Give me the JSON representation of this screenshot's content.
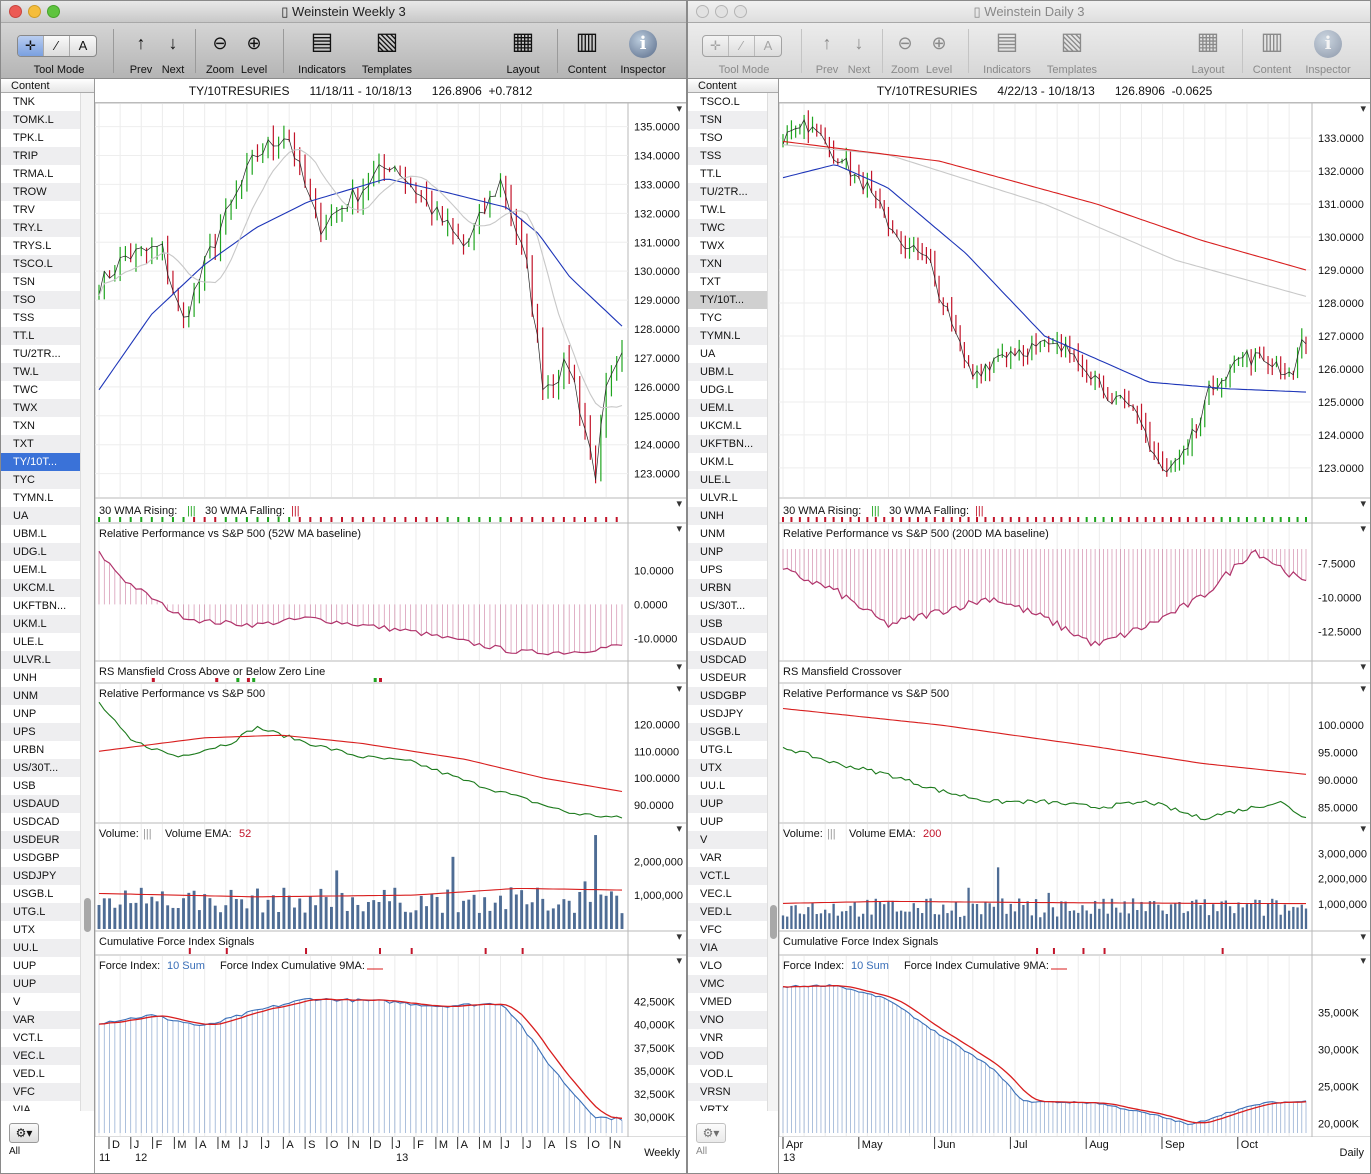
{
  "windows": [
    {
      "title": "Weinstein Weekly 3",
      "active": true,
      "toolbar": {
        "tool_mode": "Tool Mode",
        "prev": "Prev",
        "next": "Next",
        "zoom": "Zoom",
        "level": "Level",
        "indicators": "Indicators",
        "templates": "Templates",
        "layout": "Layout",
        "content": "Content",
        "inspector": "Inspector"
      },
      "sidebar": {
        "header": "Content",
        "selected": "TY/10T...",
        "bottom": "All",
        "items": [
          "TNK",
          "TOMK.L",
          "TPK.L",
          "TRIP",
          "TRMA.L",
          "TROW",
          "TRV",
          "TRY.L",
          "TRYS.L",
          "TSCO.L",
          "TSN",
          "TSO",
          "TSS",
          "TT.L",
          "TU/2TR...",
          "TW.L",
          "TWC",
          "TWX",
          "TXN",
          "TXT",
          "TY/10T...",
          "TYC",
          "TYMN.L",
          "UA",
          "UBM.L",
          "UDG.L",
          "UEM.L",
          "UKCM.L",
          "UKFTBN...",
          "UKM.L",
          "ULE.L",
          "ULVR.L",
          "UNH",
          "UNM",
          "UNP",
          "UPS",
          "URBN",
          "US/30T...",
          "USB",
          "USDAUD",
          "USDCAD",
          "USDEUR",
          "USDGBP",
          "USDJPY",
          "USGB.L",
          "UTG.L",
          "UTX",
          "UU.L",
          "UUP",
          "UUP",
          "V",
          "VAR",
          "VCT.L",
          "VEC.L",
          "VED.L",
          "VFC",
          "VIA"
        ]
      },
      "header": {
        "symbol": "TY/10TRESURIES",
        "range": "11/18/11 - 10/18/13",
        "last": "126.8906",
        "change": "+0.7812"
      },
      "panels": {
        "price": {
          "ticks": [
            "135.0000",
            "134.0000",
            "133.0000",
            "132.0000",
            "131.0000",
            "130.0000",
            "129.0000",
            "128.0000",
            "127.0000",
            "126.0000",
            "125.0000",
            "124.0000",
            "123.0000"
          ]
        },
        "wma": {
          "rising": "30 WMA Rising:",
          "falling": "30 WMA Falling:"
        },
        "relperf_ma": {
          "title": "Relative Performance vs S&P 500 (52W MA baseline)",
          "ticks": [
            "10.0000",
            "0.0000",
            "-10.0000"
          ]
        },
        "rs_mansfield": {
          "title": "RS Mansfield Cross Above or Below Zero Line"
        },
        "relperf": {
          "title": "Relative Performance vs S&P 500",
          "ticks": [
            "120.0000",
            "110.0000",
            "100.0000",
            "90.0000"
          ]
        },
        "volume": {
          "title": "Volume:",
          "ema_label": "Volume EMA:",
          "ema_value": "52",
          "ticks": [
            "2,000,000",
            "1,000,000"
          ]
        },
        "cfi": {
          "title": "Cumulative Force Index Signals"
        },
        "force": {
          "title": "Force Index:",
          "sum": "10 Sum",
          "cum": "Force Index Cumulative 9MA:",
          "ticks": [
            "42,500K",
            "40,000K",
            "37,500K",
            "35,000K",
            "32,500K",
            "30,000K"
          ]
        }
      },
      "xaxis": {
        "months": [
          "D",
          "J",
          "F",
          "M",
          "A",
          "M",
          "J",
          "J",
          "A",
          "S",
          "O",
          "N",
          "D",
          "J",
          "F",
          "M",
          "A",
          "M",
          "J",
          "J",
          "A",
          "S",
          "O",
          "N"
        ],
        "years": [
          "11",
          "12",
          "13"
        ],
        "period": "Weekly"
      }
    },
    {
      "title": "Weinstein Daily 3",
      "active": false,
      "toolbar": {
        "tool_mode": "Tool Mode",
        "prev": "Prev",
        "next": "Next",
        "zoom": "Zoom",
        "level": "Level",
        "indicators": "Indicators",
        "templates": "Templates",
        "layout": "Layout",
        "content": "Content",
        "inspector": "Inspector"
      },
      "sidebar": {
        "header": "Content",
        "selected": "TY/10T...",
        "bottom": "All",
        "items": [
          "TSCO.L",
          "TSN",
          "TSO",
          "TSS",
          "TT.L",
          "TU/2TR...",
          "TW.L",
          "TWC",
          "TWX",
          "TXN",
          "TXT",
          "TY/10T...",
          "TYC",
          "TYMN.L",
          "UA",
          "UBM.L",
          "UDG.L",
          "UEM.L",
          "UKCM.L",
          "UKFTBN...",
          "UKM.L",
          "ULE.L",
          "ULVR.L",
          "UNH",
          "UNM",
          "UNP",
          "UPS",
          "URBN",
          "US/30T...",
          "USB",
          "USDAUD",
          "USDCAD",
          "USDEUR",
          "USDGBP",
          "USDJPY",
          "USGB.L",
          "UTG.L",
          "UTX",
          "UU.L",
          "UUP",
          "UUP",
          "V",
          "VAR",
          "VCT.L",
          "VEC.L",
          "VED.L",
          "VFC",
          "VIA",
          "VLO",
          "VMC",
          "VMED",
          "VNO",
          "VNR",
          "VOD",
          "VOD.L",
          "VRSN",
          "VRTX"
        ]
      },
      "header": {
        "symbol": "TY/10TRESURIES",
        "range": "4/22/13 - 10/18/13",
        "last": "126.8906",
        "change": "-0.0625"
      },
      "panels": {
        "price": {
          "ticks": [
            "133.0000",
            "132.0000",
            "131.0000",
            "130.0000",
            "129.0000",
            "128.0000",
            "127.0000",
            "126.0000",
            "125.0000",
            "124.0000",
            "123.0000"
          ]
        },
        "wma": {
          "rising": "30 WMA Rising:",
          "falling": "30 WMA Falling:"
        },
        "relperf_ma": {
          "title": "Relative Performance vs S&P 500 (200D MA baseline)",
          "ticks": [
            "-7.5000",
            "-10.0000",
            "-12.5000"
          ]
        },
        "rs_mansfield": {
          "title": "RS Mansfield Crossover"
        },
        "relperf": {
          "title": "Relative Performance vs S&P 500",
          "ticks": [
            "100.0000",
            "95.0000",
            "90.0000",
            "85.0000"
          ]
        },
        "volume": {
          "title": "Volume:",
          "ema_label": "Volume EMA:",
          "ema_value": "200",
          "ticks": [
            "3,000,000",
            "2,000,000",
            "1,000,000"
          ]
        },
        "cfi": {
          "title": "Cumulative Force Index Signals"
        },
        "force": {
          "title": "Force Index:",
          "sum": "10 Sum",
          "cum": "Force Index Cumulative 9MA:",
          "ticks": [
            "35,000K",
            "30,000K",
            "25,000K",
            "20,000K"
          ]
        }
      },
      "xaxis": {
        "months": [
          "Apr",
          "May",
          "Jun",
          "Jul",
          "Aug",
          "Sep",
          "Oct"
        ],
        "years": [
          "13"
        ],
        "period": "Daily"
      }
    }
  ],
  "colors": {
    "up": "#1fa51f",
    "down": "#c2142a",
    "ma_blue": "#1d35b8",
    "ma_gray": "#c8c8c8",
    "ma_red": "#d81e1e",
    "rel_bar": "#b0336b",
    "vol_bar": "#4e6c94",
    "force_bar": "#6c8fc2",
    "rel_green": "#1c7a1c",
    "select": "#3a72d8"
  }
}
